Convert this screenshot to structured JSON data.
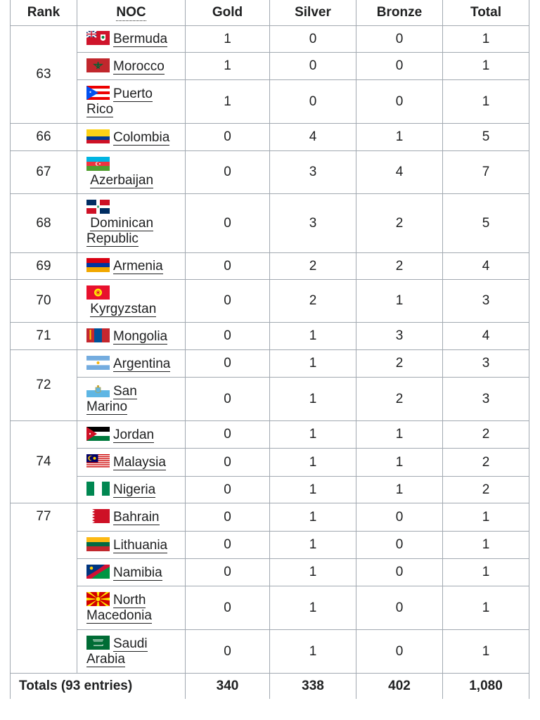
{
  "headers": {
    "rank": "Rank",
    "noc": "NOC",
    "gold": "Gold",
    "silver": "Silver",
    "bronze": "Bronze",
    "total": "Total"
  },
  "groups": [
    {
      "rank": "63",
      "rows": [
        {
          "country": "Bermuda",
          "gold": "1",
          "silver": "0",
          "bronze": "0",
          "total": "1"
        },
        {
          "country": "Morocco",
          "gold": "1",
          "silver": "0",
          "bronze": "0",
          "total": "1"
        },
        {
          "country": "Puerto Rico",
          "gold": "1",
          "silver": "0",
          "bronze": "0",
          "total": "1"
        }
      ]
    },
    {
      "rank": "66",
      "rows": [
        {
          "country": "Colombia",
          "gold": "0",
          "silver": "4",
          "bronze": "1",
          "total": "5"
        }
      ]
    },
    {
      "rank": "67",
      "rows": [
        {
          "country": "Azerbaijan",
          "gold": "0",
          "silver": "3",
          "bronze": "4",
          "total": "7"
        }
      ]
    },
    {
      "rank": "68",
      "rows": [
        {
          "country": "Dominican Republic",
          "gold": "0",
          "silver": "3",
          "bronze": "2",
          "total": "5"
        }
      ]
    },
    {
      "rank": "69",
      "rows": [
        {
          "country": "Armenia",
          "gold": "0",
          "silver": "2",
          "bronze": "2",
          "total": "4"
        }
      ]
    },
    {
      "rank": "70",
      "rows": [
        {
          "country": "Kyrgyzstan",
          "gold": "0",
          "silver": "2",
          "bronze": "1",
          "total": "3"
        }
      ]
    },
    {
      "rank": "71",
      "rows": [
        {
          "country": "Mongolia",
          "gold": "0",
          "silver": "1",
          "bronze": "3",
          "total": "4"
        }
      ]
    },
    {
      "rank": "72",
      "rows": [
        {
          "country": "Argentina",
          "gold": "0",
          "silver": "1",
          "bronze": "2",
          "total": "3"
        },
        {
          "country": "San Marino",
          "gold": "0",
          "silver": "1",
          "bronze": "2",
          "total": "3"
        }
      ]
    },
    {
      "rank": "74",
      "rows": [
        {
          "country": "Jordan",
          "gold": "0",
          "silver": "1",
          "bronze": "1",
          "total": "2"
        },
        {
          "country": "Malaysia",
          "gold": "0",
          "silver": "1",
          "bronze": "1",
          "total": "2"
        },
        {
          "country": "Nigeria",
          "gold": "0",
          "silver": "1",
          "bronze": "1",
          "total": "2"
        }
      ]
    },
    {
      "rank": "77",
      "rows": [
        {
          "country": "Bahrain",
          "gold": "0",
          "silver": "1",
          "bronze": "0",
          "total": "1"
        },
        {
          "country": "Lithuania",
          "gold": "0",
          "silver": "1",
          "bronze": "0",
          "total": "1"
        },
        {
          "country": "Namibia",
          "gold": "0",
          "silver": "1",
          "bronze": "0",
          "total": "1"
        },
        {
          "country": "North Macedonia",
          "gold": "0",
          "silver": "1",
          "bronze": "0",
          "total": "1"
        },
        {
          "country": "Saudi Arabia",
          "gold": "0",
          "silver": "1",
          "bronze": "0",
          "total": "1"
        }
      ]
    }
  ],
  "totals": {
    "label": "Totals (93 entries)",
    "gold": "340",
    "silver": "338",
    "bronze": "402",
    "total": "1,080"
  }
}
